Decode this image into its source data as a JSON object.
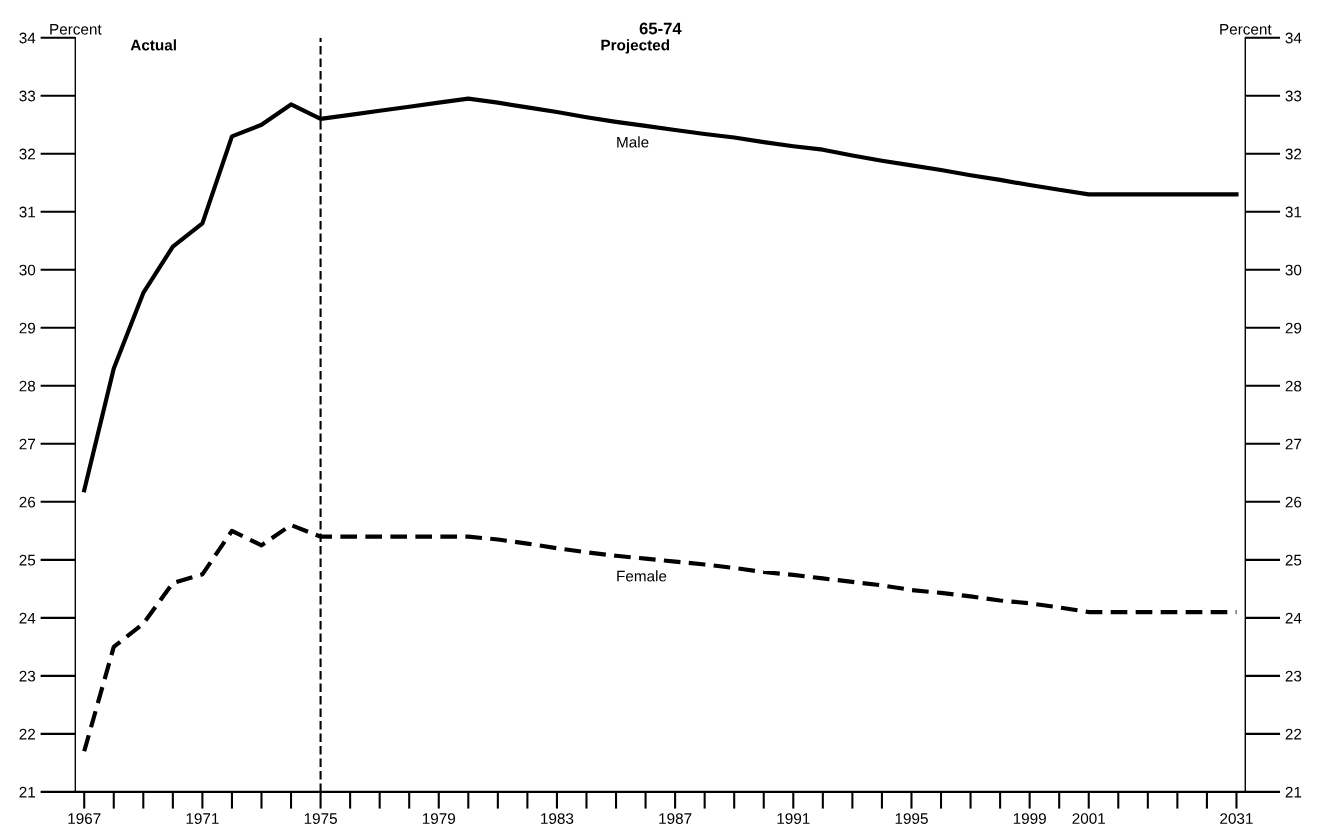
{
  "chart_data": {
    "type": "line",
    "title": "65-74",
    "ylabel": "Percent",
    "y2label": "Percent",
    "categories": [
      "1967",
      null,
      null,
      null,
      "1971",
      null,
      null,
      null,
      "1975",
      null,
      null,
      null,
      "1979",
      null,
      null,
      null,
      "1983",
      null,
      null,
      null,
      "1987",
      null,
      null,
      null,
      "1991",
      null,
      null,
      null,
      "1995",
      null,
      null,
      null,
      "1999",
      null,
      "2001",
      null,
      null,
      null,
      null,
      "2031"
    ],
    "series": [
      {
        "name": "Male",
        "color": "#000000",
        "line_style": "solid",
        "values": [
          26.2,
          28.3,
          29.6,
          30.4,
          30.8,
          32.3,
          32.5,
          32.85,
          32.6,
          32.67,
          32.74,
          32.81,
          32.88,
          32.95,
          32.88,
          32.8,
          32.72,
          32.63,
          32.55,
          32.48,
          32.41,
          32.34,
          32.28,
          32.2,
          32.13,
          32.07,
          31.97,
          31.88,
          31.8,
          31.72,
          31.63,
          31.55,
          31.46,
          31.38,
          31.3,
          31.3,
          31.3,
          31.3,
          31.3,
          31.3
        ]
      },
      {
        "name": "Female",
        "color": "#000000",
        "line_style": "dashed",
        "values": [
          21.7,
          23.5,
          23.9,
          24.6,
          24.75,
          25.5,
          25.25,
          25.6,
          25.4,
          25.4,
          25.4,
          25.4,
          25.4,
          25.4,
          25.35,
          25.28,
          25.2,
          25.13,
          25.07,
          25.02,
          24.97,
          24.92,
          24.86,
          24.79,
          24.74,
          24.68,
          24.62,
          24.56,
          24.48,
          24.43,
          24.37,
          24.3,
          24.25,
          24.18,
          24.1,
          24.1,
          24.1,
          24.1,
          24.1,
          24.1
        ]
      }
    ],
    "ylim": [
      21,
      34
    ],
    "yticks": [
      21,
      22,
      23,
      24,
      25,
      26,
      27,
      28,
      29,
      30,
      31,
      32,
      33,
      34
    ],
    "y2lim": [
      21,
      34
    ],
    "y2ticks": [
      21,
      22,
      23,
      24,
      25,
      26,
      27,
      28,
      29,
      30,
      31,
      32,
      33,
      34
    ],
    "ref_lines": [
      {
        "axis": "x",
        "value": "1975",
        "color": "#000000",
        "line_style": "dashed"
      }
    ],
    "annotations": [
      "Actual",
      "Projected"
    ],
    "grid": false,
    "legend": false,
    "marker": "none"
  }
}
